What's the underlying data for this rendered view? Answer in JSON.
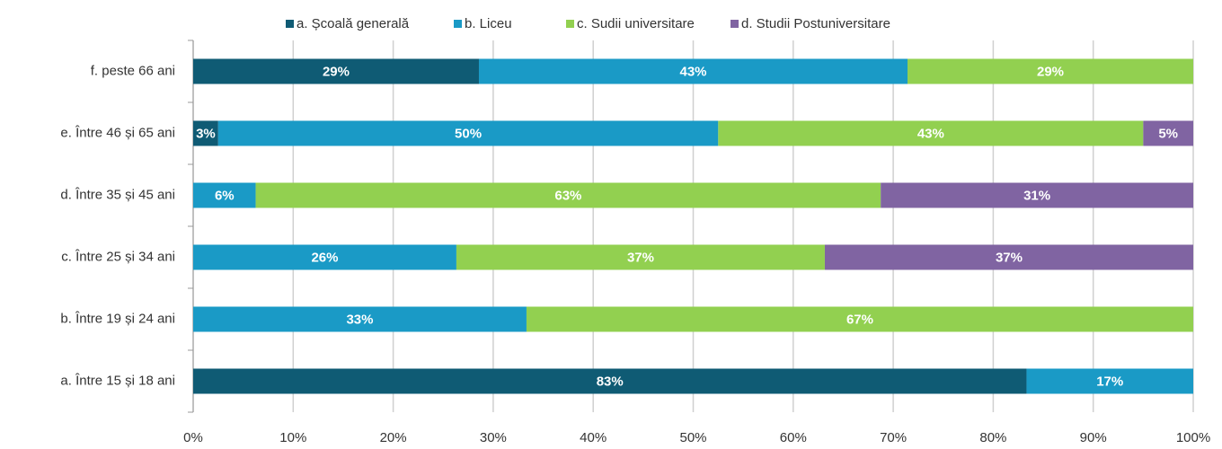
{
  "chart_data": {
    "type": "stacked_bar",
    "orientation": "horizontal",
    "categories": [
      "f. peste 66 ani",
      "e. Între 46 și 65 ani",
      "d. Între 35 și 45 ani",
      "c. Între 25 și 34 ani",
      "b. Între 19 și 24 ani",
      "a. Între 15 și 18 ani"
    ],
    "series": [
      {
        "name": "a. Școală generală",
        "color": "#0f5b74",
        "values": [
          28.57,
          2.5,
          null,
          null,
          null,
          83.33
        ],
        "value_labels": [
          "29%",
          "3%",
          null,
          null,
          null,
          "83%"
        ]
      },
      {
        "name": "b. Liceu",
        "color": "#1a9ac6",
        "values": [
          42.86,
          50,
          6.25,
          26.32,
          33.33,
          16.67
        ],
        "value_labels": [
          "43%",
          "50%",
          "6%",
          "26%",
          "33%",
          "17%"
        ]
      },
      {
        "name": "c. Sudii universitare",
        "color": "#92d050",
        "values": [
          28.57,
          42.5,
          62.5,
          36.84,
          66.67,
          null
        ],
        "value_labels": [
          "29%",
          "43%",
          "63%",
          "37%",
          "67%",
          null
        ]
      },
      {
        "name": "d. Studii Postuniversitare",
        "color": "#8064a2",
        "values": [
          null,
          5,
          31.25,
          36.84,
          null,
          null
        ],
        "value_labels": [
          null,
          "5%",
          "31%",
          "37%",
          null,
          null
        ]
      }
    ],
    "xlim": [
      0,
      100
    ],
    "xticks": [
      {
        "value": 0,
        "label": "0%"
      },
      {
        "value": 10,
        "label": "10%"
      },
      {
        "value": 20,
        "label": "20%"
      },
      {
        "value": 30,
        "label": "30%"
      },
      {
        "value": 40,
        "label": "40%"
      },
      {
        "value": 50,
        "label": "50%"
      },
      {
        "value": 60,
        "label": "60%"
      },
      {
        "value": 70,
        "label": "70%"
      },
      {
        "value": 80,
        "label": "80%"
      },
      {
        "value": 90,
        "label": "90%"
      },
      {
        "value": 100,
        "label": "100%"
      }
    ],
    "grid": true,
    "legend": "top"
  }
}
